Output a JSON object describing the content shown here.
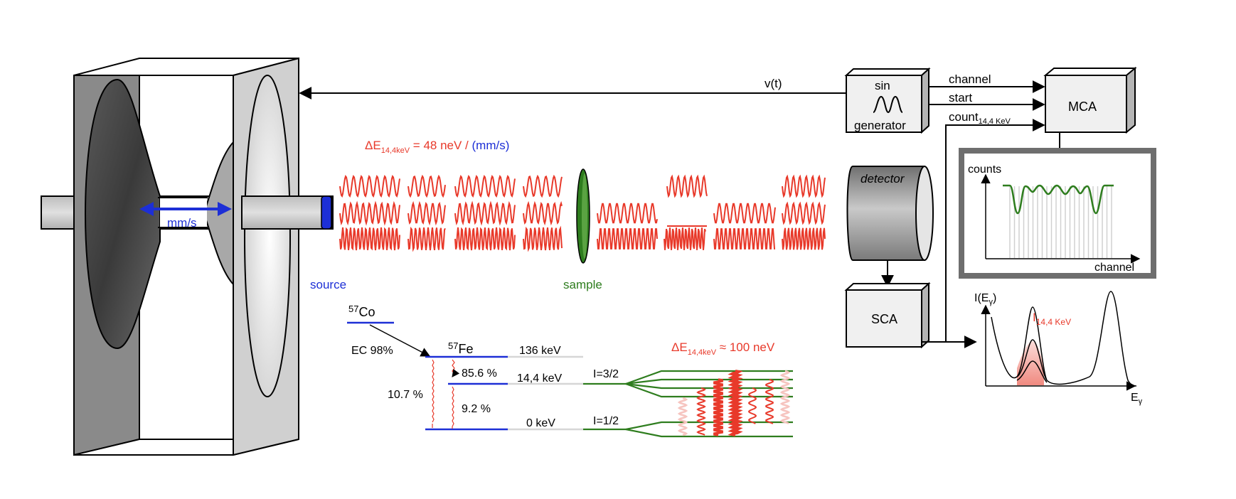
{
  "labels": {
    "vt": "v(t)",
    "channel": "channel",
    "start": "start",
    "count_main": "count",
    "count_sub": "14,4 KeV",
    "mca": "MCA",
    "sin": "sin",
    "generator": "generator",
    "detector": "detector",
    "sca": "SCA",
    "counts_axis": "counts",
    "channel_axis": "channel",
    "source": "source",
    "sample": "sample",
    "mms": "mm/s",
    "de_top_delta": "ΔE",
    "de_top_sub": "14,4keV",
    "de_top_value": " = 48 neV / ",
    "de_top_unit": "(mm/s)",
    "de_bottom_delta": "ΔE",
    "de_bottom_sub": "14,4keV",
    "de_bottom_value": " ≈ 100 neV",
    "co_sup": "57",
    "co": "Co",
    "fe_sup": "57",
    "fe": "Fe",
    "ec": "EC 98%",
    "p856": "85.6 %",
    "p107": "10.7 %",
    "p92": "9.2 %",
    "e136": "136 keV",
    "e144": "14,4 keV",
    "e0": "0 keV",
    "i32": "I=3/2",
    "i12": "I=1/2",
    "spec_i": "I(E",
    "spec_i_sub": "γ",
    "spec_i_close": ")",
    "spec_peak": "I",
    "spec_peak_sub": "14,4 KeV",
    "spec_e": "E",
    "spec_e_sub": "γ"
  },
  "colors": {
    "red": "#e8392a",
    "blue": "#1d2fd6",
    "green": "#2e7d1e",
    "grey_dark": "#808080",
    "grey_light": "#e6e6e6"
  }
}
